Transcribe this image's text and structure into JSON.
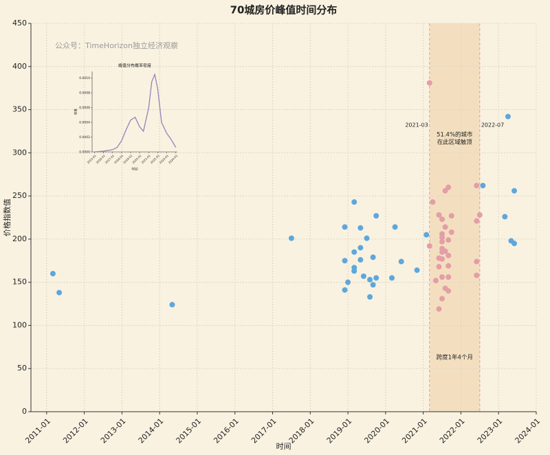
{
  "chart_data": [
    {
      "type": "scatter",
      "title": "70城房价峰值时间分布",
      "x_label": "时间",
      "y_label": "价格指数值",
      "watermark": "公众号：TimeHorizon独立经济观察",
      "highlight": {
        "start": "2021-03",
        "end": "2022-07",
        "color": "#f3dfc0",
        "edge_color": "#e89a9a"
      },
      "annotations": [
        "51.4%的城市",
        "在此区域触顶",
        "跨度1年4个月"
      ],
      "grid": true,
      "xlim": [
        "2010-08",
        "2024-01"
      ],
      "xticks": [
        "2011-01",
        "2012-01",
        "2013-01",
        "2014-01",
        "2015-01",
        "2016-01",
        "2017-01",
        "2018-01",
        "2019-01",
        "2020-01",
        "2021-01",
        "2022-01",
        "2023-01",
        "2024-01"
      ],
      "ylim": [
        0,
        450
      ],
      "yticks": [
        0,
        50,
        100,
        150,
        200,
        250,
        300,
        350,
        400,
        450
      ],
      "series": [
        {
          "color": "#5ea7dc",
          "x": [
            "2011-03",
            "2011-05",
            "2014-05",
            "2017-07",
            "2018-12",
            "2018-12",
            "2018-12",
            "2019-01",
            "2019-03",
            "2019-03",
            "2019-03",
            "2019-03",
            "2019-05",
            "2019-05",
            "2019-05",
            "2019-06",
            "2019-07",
            "2019-08",
            "2019-08",
            "2019-09",
            "2019-09",
            "2019-10",
            "2019-10",
            "2020-03",
            "2020-04",
            "2020-06",
            "2020-11",
            "2021-02",
            "2022-08",
            "2023-03",
            "2023-04",
            "2023-05",
            "2023-06",
            "2023-06"
          ],
          "values": [
            160,
            138,
            124,
            201,
            214,
            175,
            141,
            150,
            243,
            185,
            167,
            163,
            213,
            190,
            176,
            157,
            201,
            153,
            133,
            179,
            147,
            155,
            227,
            155,
            214,
            174,
            164,
            205,
            262,
            226,
            342,
            198,
            195,
            256
          ]
        },
        {
          "color": "#e39ea6",
          "x": [
            "2021-03",
            "2021-03",
            "2021-04",
            "2021-05",
            "2021-06",
            "2021-06",
            "2021-06",
            "2021-06",
            "2021-07",
            "2021-07",
            "2021-07",
            "2021-07",
            "2021-07",
            "2021-07",
            "2021-07",
            "2021-07",
            "2021-07",
            "2021-08",
            "2021-08",
            "2021-08",
            "2021-09",
            "2021-09",
            "2021-09",
            "2021-09",
            "2021-09",
            "2021-09",
            "2021-08",
            "2021-10",
            "2021-10",
            "2022-06",
            "2022-06",
            "2022-06",
            "2022-06",
            "2022-07"
          ],
          "values": [
            381,
            192,
            243,
            152,
            228,
            168,
            178,
            119,
            131,
            223,
            206,
            202,
            197,
            189,
            185,
            177,
            156,
            214,
            256,
            143,
            260,
            199,
            181,
            169,
            156,
            140,
            186,
            227,
            208,
            262,
            221,
            174,
            158,
            228
          ]
        }
      ]
    },
    {
      "type": "line",
      "title": "峰值分布概率密度",
      "x_label": "时间",
      "y_label": "密度",
      "color": "#9b7fb6",
      "xlim": [
        "2014-10",
        "2024-03"
      ],
      "xticks": [
        "2015-01",
        "2016-01",
        "2017-01",
        "2018-01",
        "2019-01",
        "2020-01",
        "2021-01",
        "2022-01",
        "2023-01",
        "2024-01"
      ],
      "ylim": [
        0,
        0.00109
      ],
      "yticks": [
        {
          "value": 0,
          "label": "0.0000"
        },
        {
          "value": 0.0002,
          "label": "0.0002"
        },
        {
          "value": 0.0004,
          "label": "0.0004"
        },
        {
          "value": 0.0006,
          "label": "0.0006"
        },
        {
          "value": 0.0008,
          "label": "0.0008"
        },
        {
          "value": 0.001,
          "label": "0.0010"
        }
      ],
      "x": [
        "2015-01",
        "2016-01",
        "2017-01",
        "2017-07",
        "2018-01",
        "2018-07",
        "2019-01",
        "2019-07",
        "2020-01",
        "2020-06",
        "2021-01",
        "2021-05",
        "2021-09",
        "2022-01",
        "2022-06",
        "2023-01",
        "2023-06",
        "2024-01"
      ],
      "values": [
        0,
        1e-05,
        3e-05,
        6e-05,
        0.00015,
        0.0003,
        0.00043,
        0.00047,
        0.00034,
        0.00028,
        0.0006,
        0.00095,
        0.00105,
        0.00085,
        0.0004,
        0.00025,
        0.00018,
        6e-05
      ]
    }
  ]
}
